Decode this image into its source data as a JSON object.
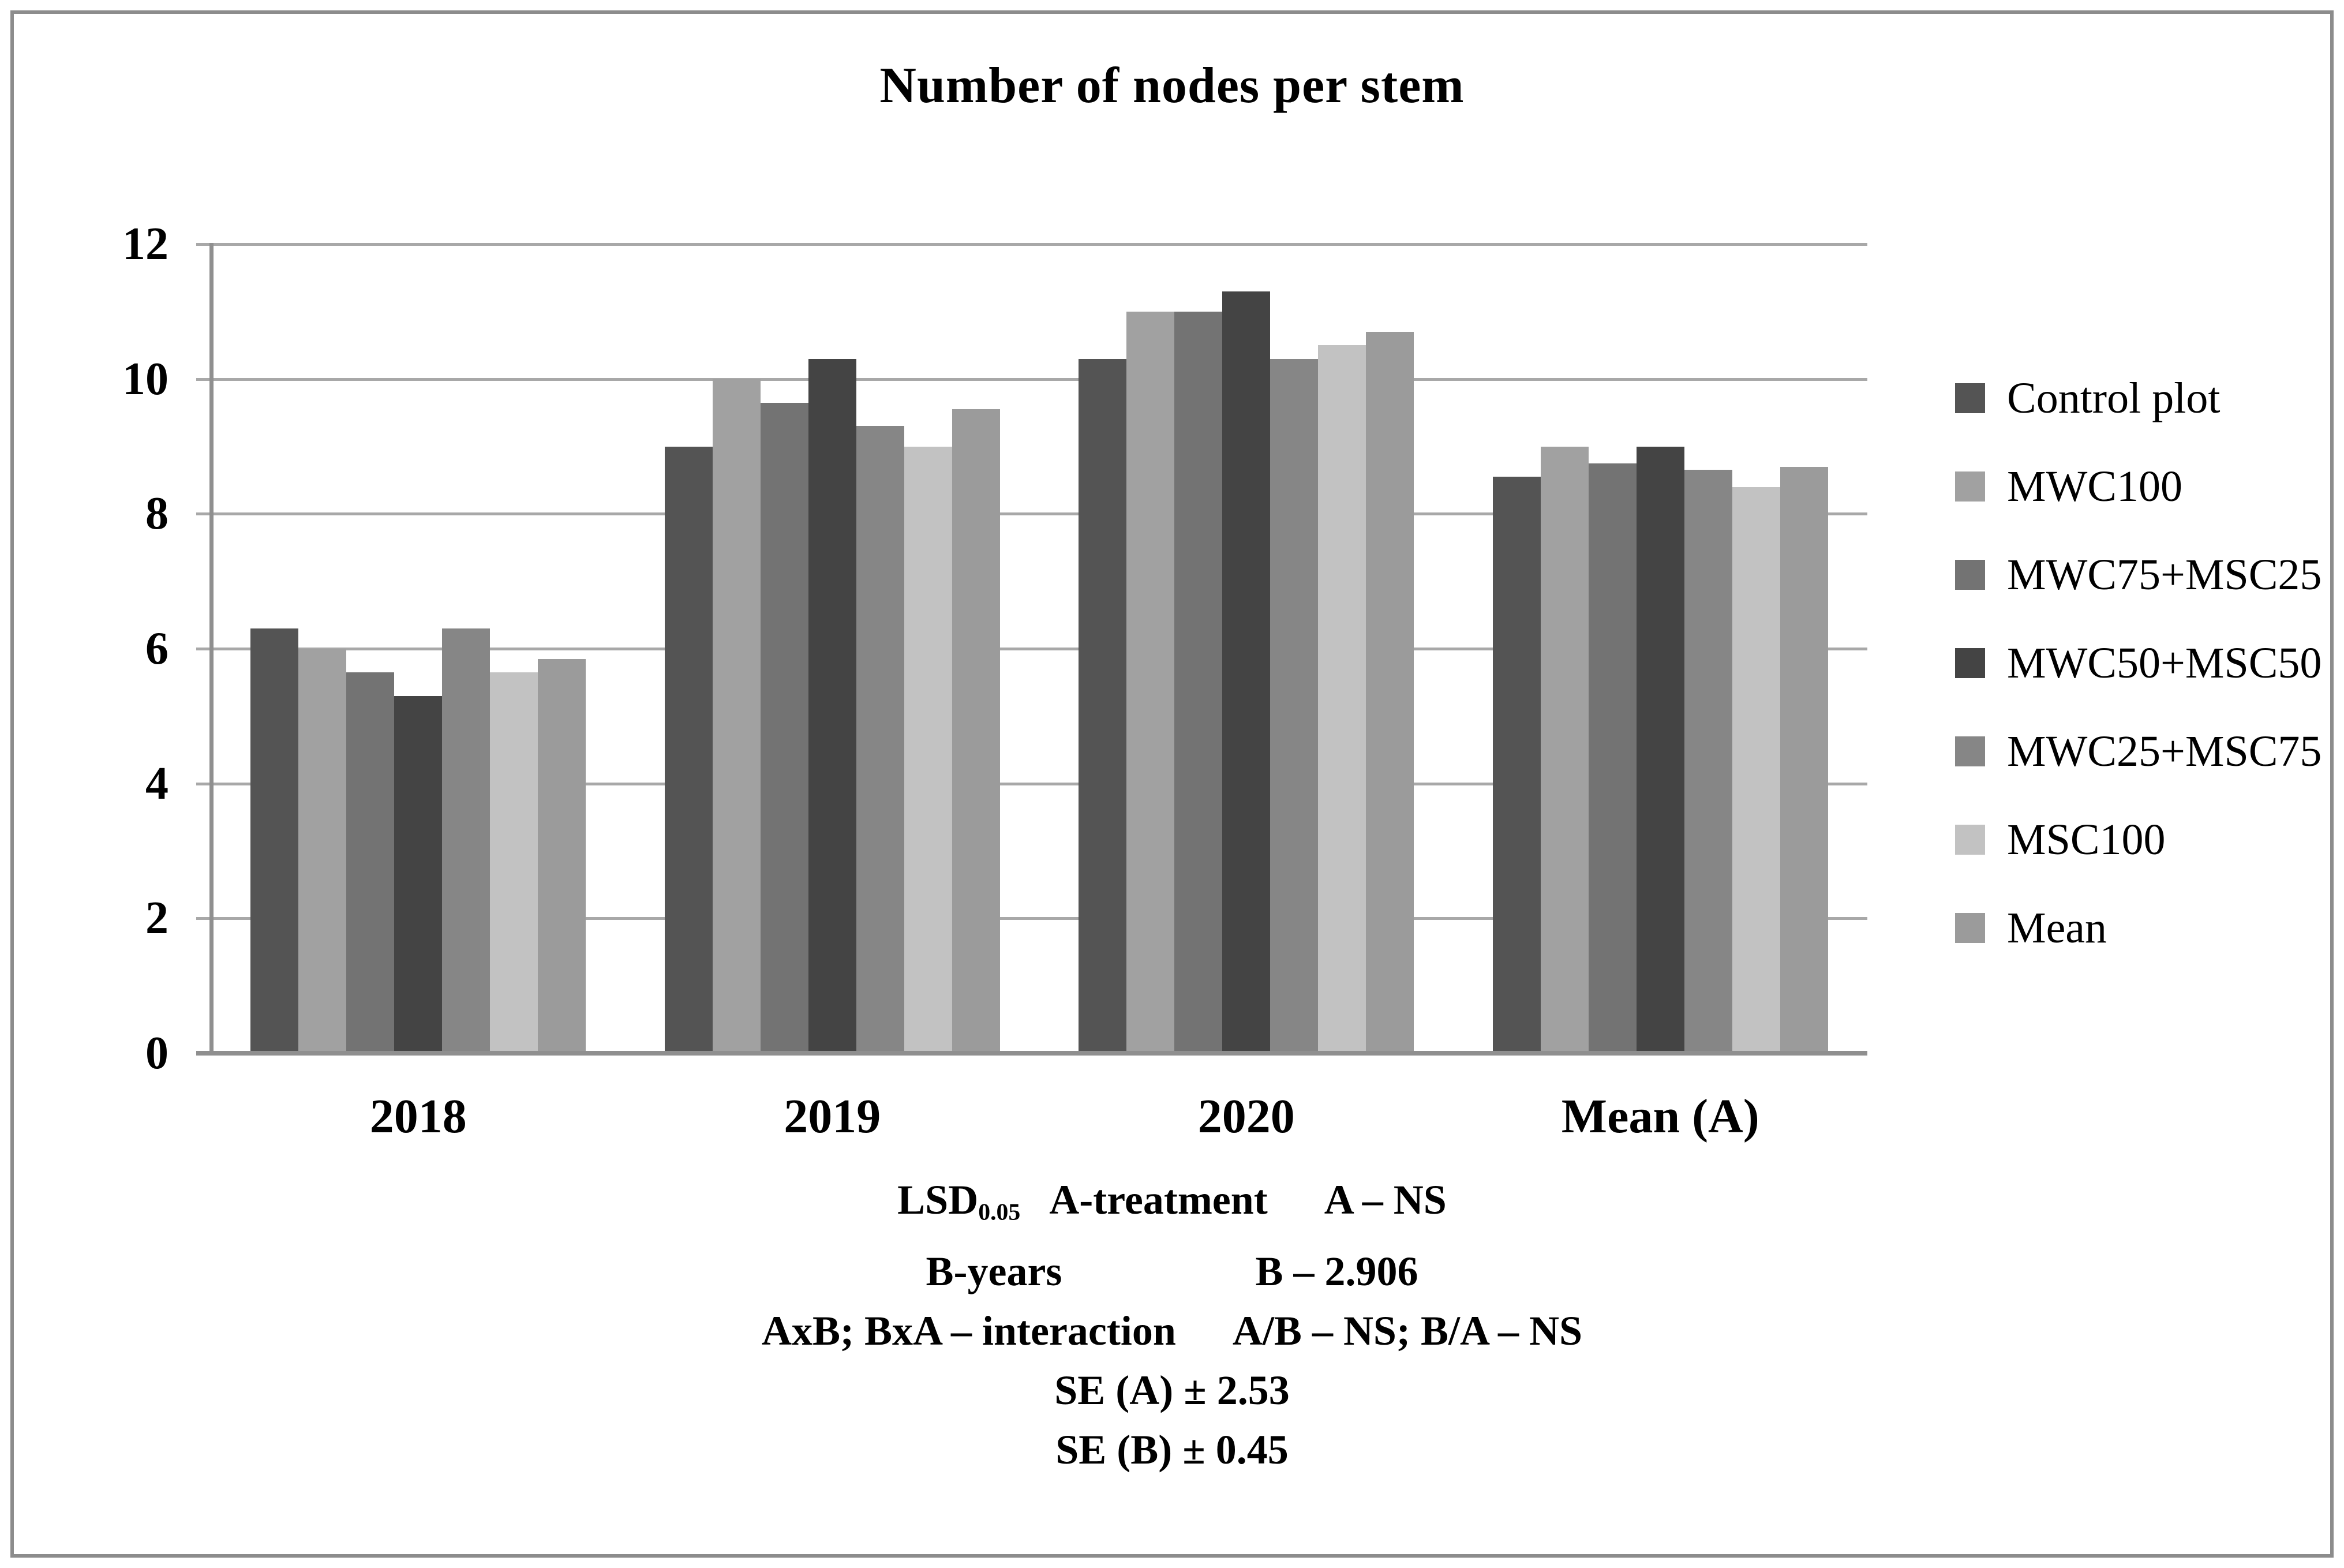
{
  "chart_data": {
    "type": "bar",
    "title": "Number of nodes per stem",
    "xlabel": "",
    "ylabel": "",
    "categories": [
      "2018",
      "2019",
      "2020",
      "Mean (A)"
    ],
    "series": [
      {
        "name": "Control plot",
        "color": "#545454",
        "values": [
          6.3,
          9.0,
          10.3,
          8.55
        ]
      },
      {
        "name": "MWC100",
        "color": "#a1a1a1",
        "values": [
          6.0,
          10.0,
          11.0,
          9.0
        ]
      },
      {
        "name": "MWC75+MSC25",
        "color": "#737373",
        "values": [
          5.65,
          9.65,
          11.0,
          8.75
        ]
      },
      {
        "name": "MWC50+MSC50",
        "color": "#444444",
        "values": [
          5.3,
          10.3,
          11.3,
          9.0
        ]
      },
      {
        "name": "MWC25+MSC75",
        "color": "#868686",
        "values": [
          6.3,
          9.3,
          10.3,
          8.65
        ]
      },
      {
        "name": "MSC100",
        "color": "#c2c2c2",
        "values": [
          5.65,
          9.0,
          10.5,
          8.4
        ]
      },
      {
        "name": "Mean",
        "color": "#9b9b9b",
        "values": [
          5.85,
          9.55,
          10.7,
          8.7
        ]
      }
    ],
    "ylim": [
      0,
      12
    ],
    "yticks": [
      0,
      2,
      4,
      6,
      8,
      10,
      12
    ],
    "grid": true,
    "legend_position": "right",
    "gridline_color": "#a8a8a8",
    "axis_color": "#8f8f8f"
  },
  "stats": {
    "lsd_label": "LSD",
    "lsd_sub": "0.05",
    "line1_mid": "A-treatment",
    "line1_right": "A – NS",
    "line2_left": "B-years",
    "line2_right": "B – 2.906",
    "line3_left": "AxB; BxA – interaction",
    "line3_right": "A/B – NS; B/A – NS",
    "line4": "SE (A) ± 2.53",
    "line5": "SE (B) ± 0.45"
  }
}
